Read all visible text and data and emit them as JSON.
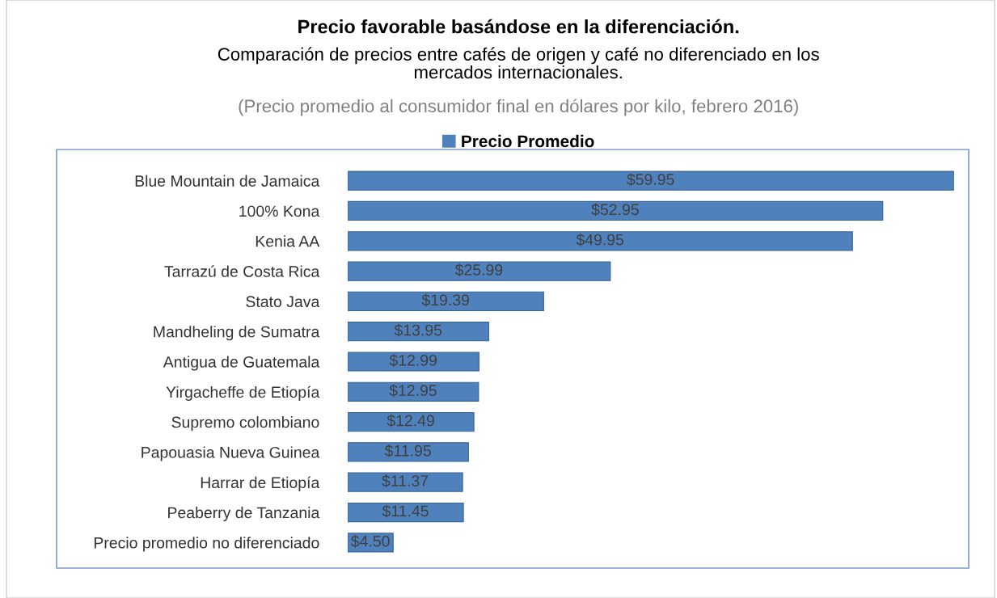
{
  "chart_data": {
    "type": "bar",
    "orientation": "horizontal",
    "title": "Precio favorable basándose en la diferenciación.",
    "subtitle": "Comparación de precios entre cafés de origen y café no diferenciado en los\nmercados internacionales.",
    "annotations": [
      "(Precio promedio al consumidor final en dólares por kilo, febrero 2016)"
    ],
    "categories": [
      "Blue Mountain de Jamaica",
      "100% Kona",
      "Kenia AA",
      "Tarrazú de Costa Rica",
      "Stato Java",
      "Mandheling de Sumatra",
      "Antigua de Guatemala",
      "Yirgacheffe de Etiopía",
      "Supremo colombiano",
      "Papouasia Nueva Guinea",
      "Harrar de Etiopía",
      "Peaberry de Tanzania",
      "Precio promedio no diferenciado"
    ],
    "series": [
      {
        "name": "Precio Promedio",
        "color": "#4f81bd",
        "values": [
          59.95,
          52.95,
          49.95,
          25.99,
          19.39,
          13.95,
          12.99,
          12.95,
          12.49,
          11.95,
          11.37,
          11.45,
          4.5
        ],
        "value_labels": [
          "$59.95",
          "$52.95",
          "$49.95",
          "$25.99",
          "$19.39",
          "$13.95",
          "$12.99",
          "$12.95",
          "$12.49",
          "$11.95",
          "$11.37",
          "$11.45",
          "$4.50"
        ]
      }
    ],
    "legend": "top",
    "grid": false,
    "tick_labels": "y"
  }
}
